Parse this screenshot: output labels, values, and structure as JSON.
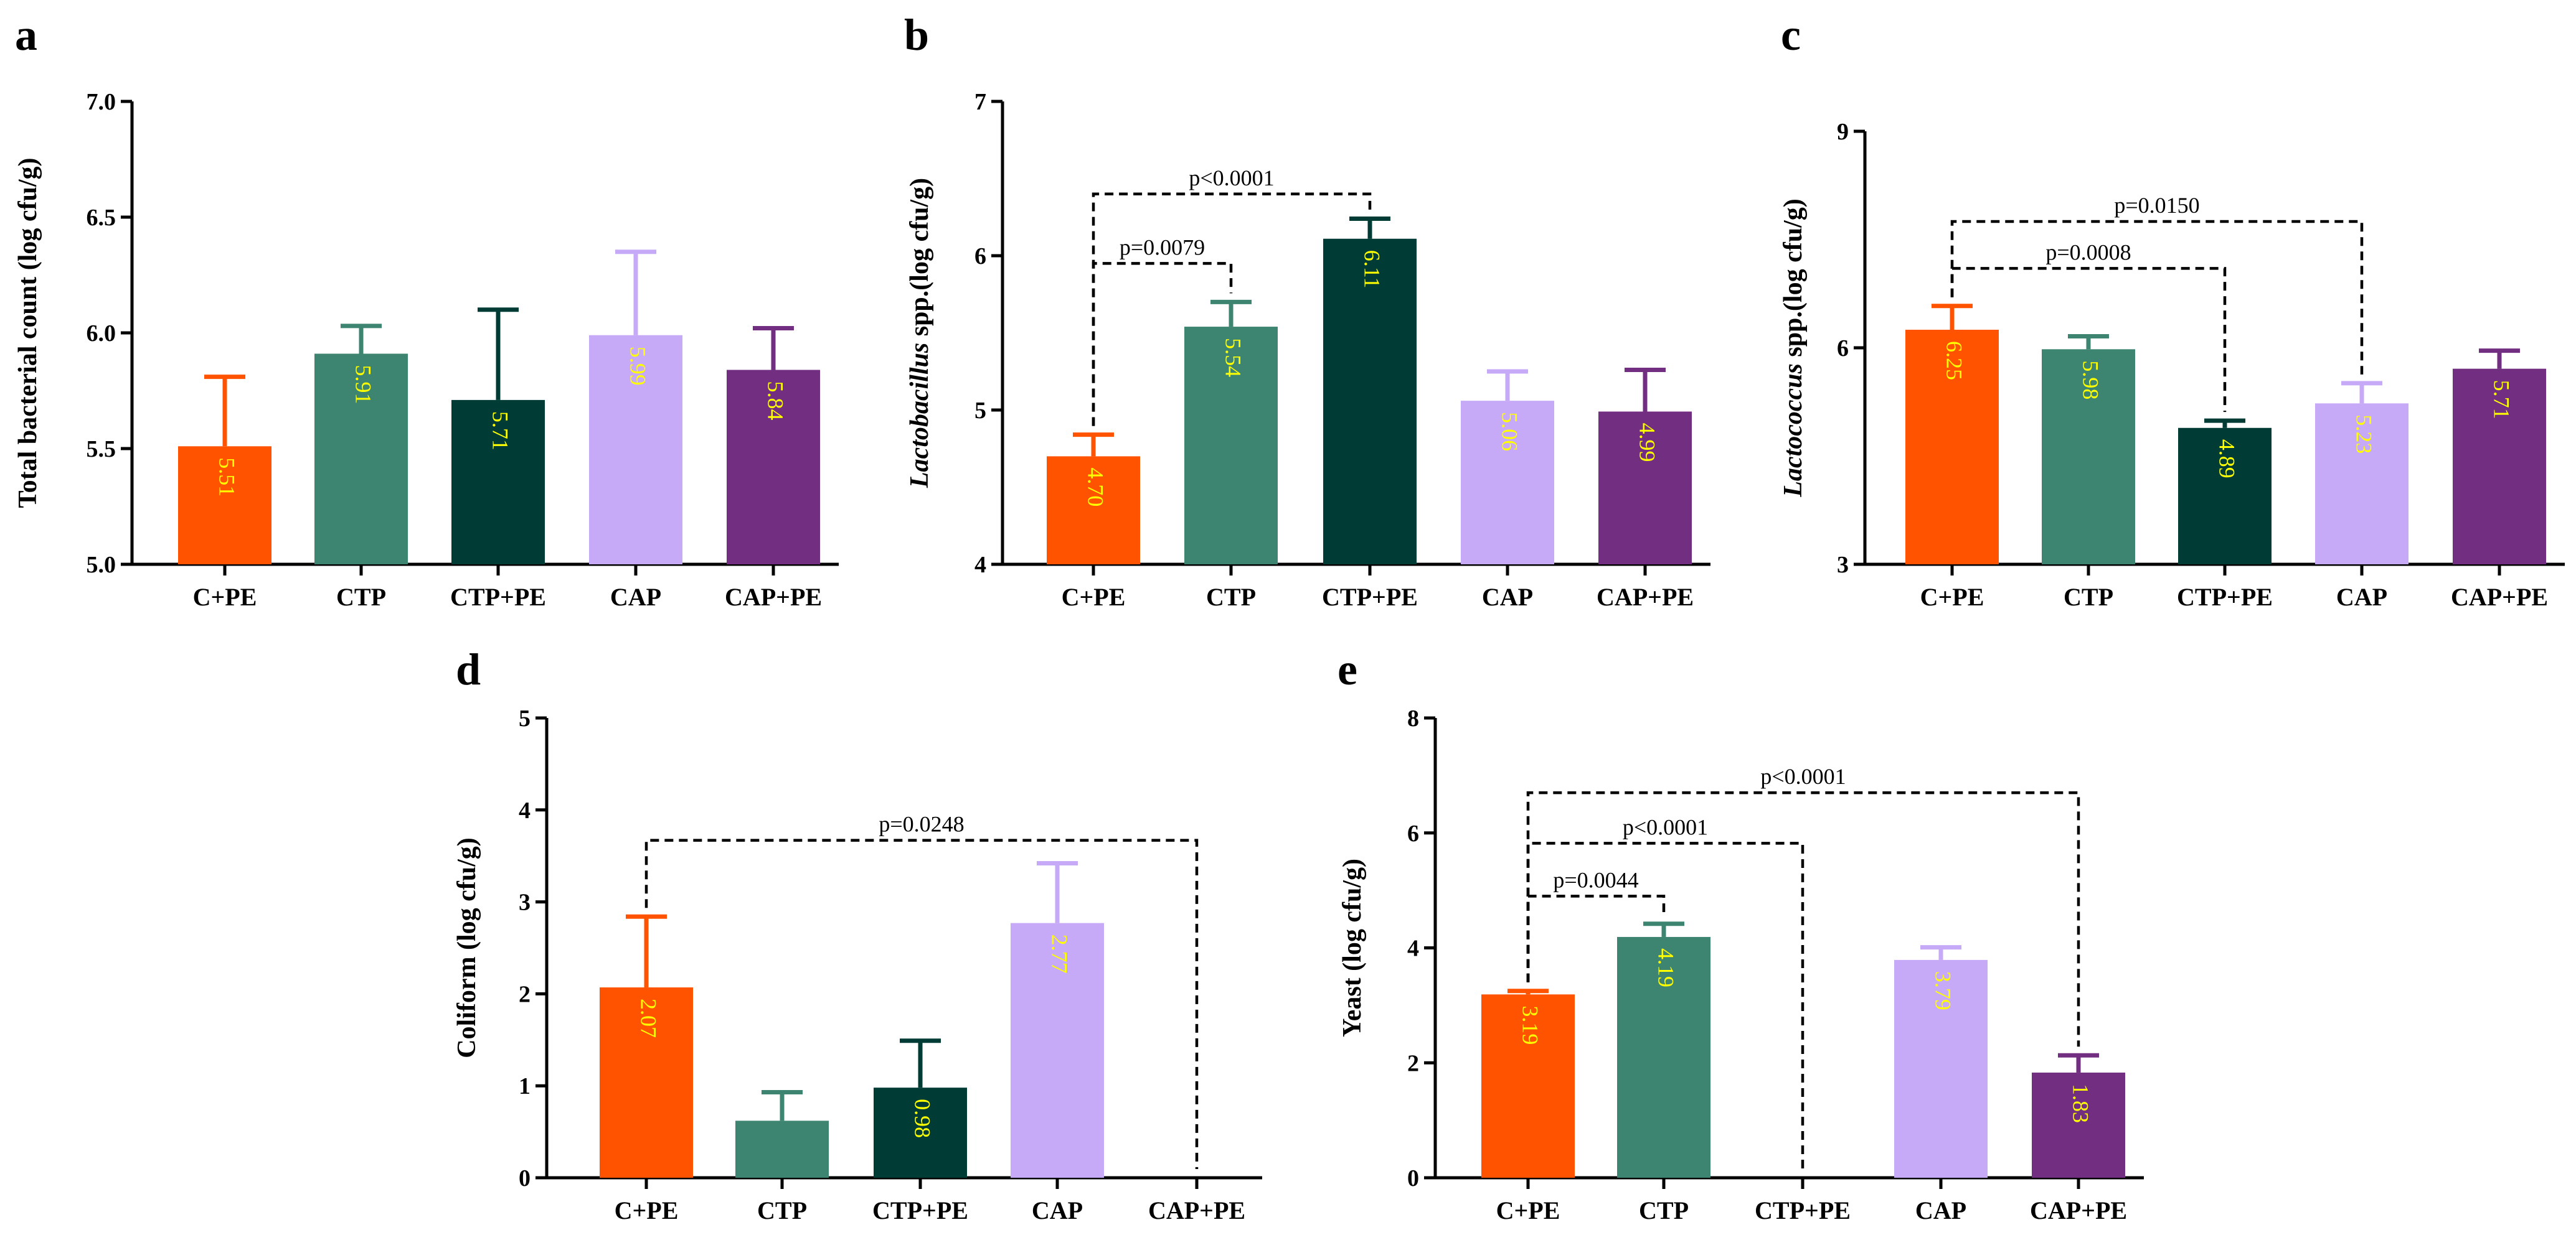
{
  "figure": {
    "colors": {
      "C+PE": "#ff5300",
      "CTP": "#3d8570",
      "CTP+PE": "#003c36",
      "CAP": "#c6aaf8",
      "CAP+PE": "#722e80",
      "label_text": "#ffff00",
      "axis": "#000000"
    }
  },
  "chart_data": [
    {
      "panel": "a",
      "type": "bar",
      "ylabel": "Total bacterial count (log cfu/g)",
      "ylabel_italic_prefix": "",
      "categories": [
        "C+PE",
        "CTP",
        "CTP+PE",
        "CAP",
        "CAP+PE"
      ],
      "values": [
        5.51,
        5.91,
        5.71,
        5.99,
        5.84
      ],
      "errors": [
        0.3,
        0.12,
        0.39,
        0.36,
        0.18
      ],
      "value_labels": [
        "5.51",
        "5.91",
        "5.71",
        "5.99",
        "5.84"
      ],
      "ylim": [
        5.0,
        7.0
      ],
      "yticks": [
        5.0,
        5.5,
        6.0,
        6.5,
        7.0
      ],
      "ytick_labels": [
        "5.0",
        "5.5",
        "6.0",
        "6.5",
        "7.0"
      ],
      "brackets": []
    },
    {
      "panel": "b",
      "type": "bar",
      "ylabel": "spp.(log cfu/g)",
      "ylabel_italic_prefix": "Lactobacillus",
      "categories": [
        "C+PE",
        "CTP",
        "CTP+PE",
        "CAP",
        "CAP+PE"
      ],
      "values": [
        4.7,
        5.54,
        6.11,
        5.06,
        4.99
      ],
      "errors": [
        0.14,
        0.16,
        0.13,
        0.19,
        0.27
      ],
      "value_labels": [
        "4.70",
        "5.54",
        "6.11",
        "5.06",
        "4.99"
      ],
      "ylim": [
        4,
        7
      ],
      "yticks": [
        4,
        5,
        6,
        7
      ],
      "ytick_labels": [
        "4",
        "5",
        "6",
        "7"
      ],
      "brackets": [
        {
          "from": 0,
          "to": 1,
          "y": 5.95,
          "label": "p=0.0079"
        },
        {
          "from": 0,
          "to": 2,
          "y": 6.4,
          "label": "p<0.0001"
        }
      ]
    },
    {
      "panel": "c",
      "type": "bar",
      "ylabel": "spp.(log cfu/g)",
      "ylabel_italic_prefix": "Lactococcus",
      "categories": [
        "C+PE",
        "CTP",
        "CTP+PE",
        "CAP",
        "CAP+PE"
      ],
      "values": [
        6.25,
        5.98,
        4.89,
        5.23,
        5.71
      ],
      "errors": [
        0.33,
        0.18,
        0.1,
        0.28,
        0.25
      ],
      "value_labels": [
        "6.25",
        "5.98",
        "4.89",
        "5.23",
        "5.71"
      ],
      "ylim": [
        3,
        9
      ],
      "yticks": [
        3,
        6,
        9
      ],
      "ytick_labels": [
        "3",
        "6",
        "9"
      ],
      "brackets": [
        {
          "from": 0,
          "to": 2,
          "y": 7.1,
          "label": "p=0.0008"
        },
        {
          "from": 0,
          "to": 3,
          "y": 7.75,
          "label": "p=0.0150"
        }
      ]
    },
    {
      "panel": "d",
      "type": "bar",
      "ylabel": "Coliform (log cfu/g)",
      "ylabel_italic_prefix": "",
      "categories": [
        "C+PE",
        "CTP",
        "CTP+PE",
        "CAP",
        "CAP+PE"
      ],
      "values": [
        2.07,
        0.62,
        0.98,
        2.77,
        0
      ],
      "errors": [
        0.77,
        0.31,
        0.51,
        0.65,
        0
      ],
      "value_labels": [
        "2.07",
        "",
        "0.98",
        "2.77",
        ""
      ],
      "ylim": [
        0,
        5
      ],
      "yticks": [
        0,
        1,
        2,
        3,
        4,
        5
      ],
      "ytick_labels": [
        "0",
        "1",
        "2",
        "3",
        "4",
        "5"
      ],
      "brackets": [
        {
          "from": 0,
          "to": 4,
          "y": 3.67,
          "label": "p=0.0248"
        }
      ]
    },
    {
      "panel": "e",
      "type": "bar",
      "ylabel": "Yeast (log cfu/g)",
      "ylabel_italic_prefix": "",
      "categories": [
        "C+PE",
        "CTP",
        "CTP+PE",
        "CAP",
        "CAP+PE"
      ],
      "values": [
        3.19,
        4.19,
        0,
        3.79,
        1.83
      ],
      "errors": [
        0.06,
        0.23,
        0,
        0.22,
        0.3
      ],
      "value_labels": [
        "3.19",
        "4.19",
        "",
        "3.79",
        "1.83"
      ],
      "ylim": [
        0,
        8
      ],
      "yticks": [
        0,
        2,
        4,
        6,
        8
      ],
      "ytick_labels": [
        "0",
        "2",
        "4",
        "6",
        "8"
      ],
      "brackets": [
        {
          "from": 0,
          "to": 1,
          "y": 4.9,
          "label": "p=0.0044"
        },
        {
          "from": 0,
          "to": 2,
          "y": 5.82,
          "label": "p<0.0001"
        },
        {
          "from": 0,
          "to": 4,
          "y": 6.7,
          "label": "p<0.0001"
        }
      ]
    }
  ]
}
